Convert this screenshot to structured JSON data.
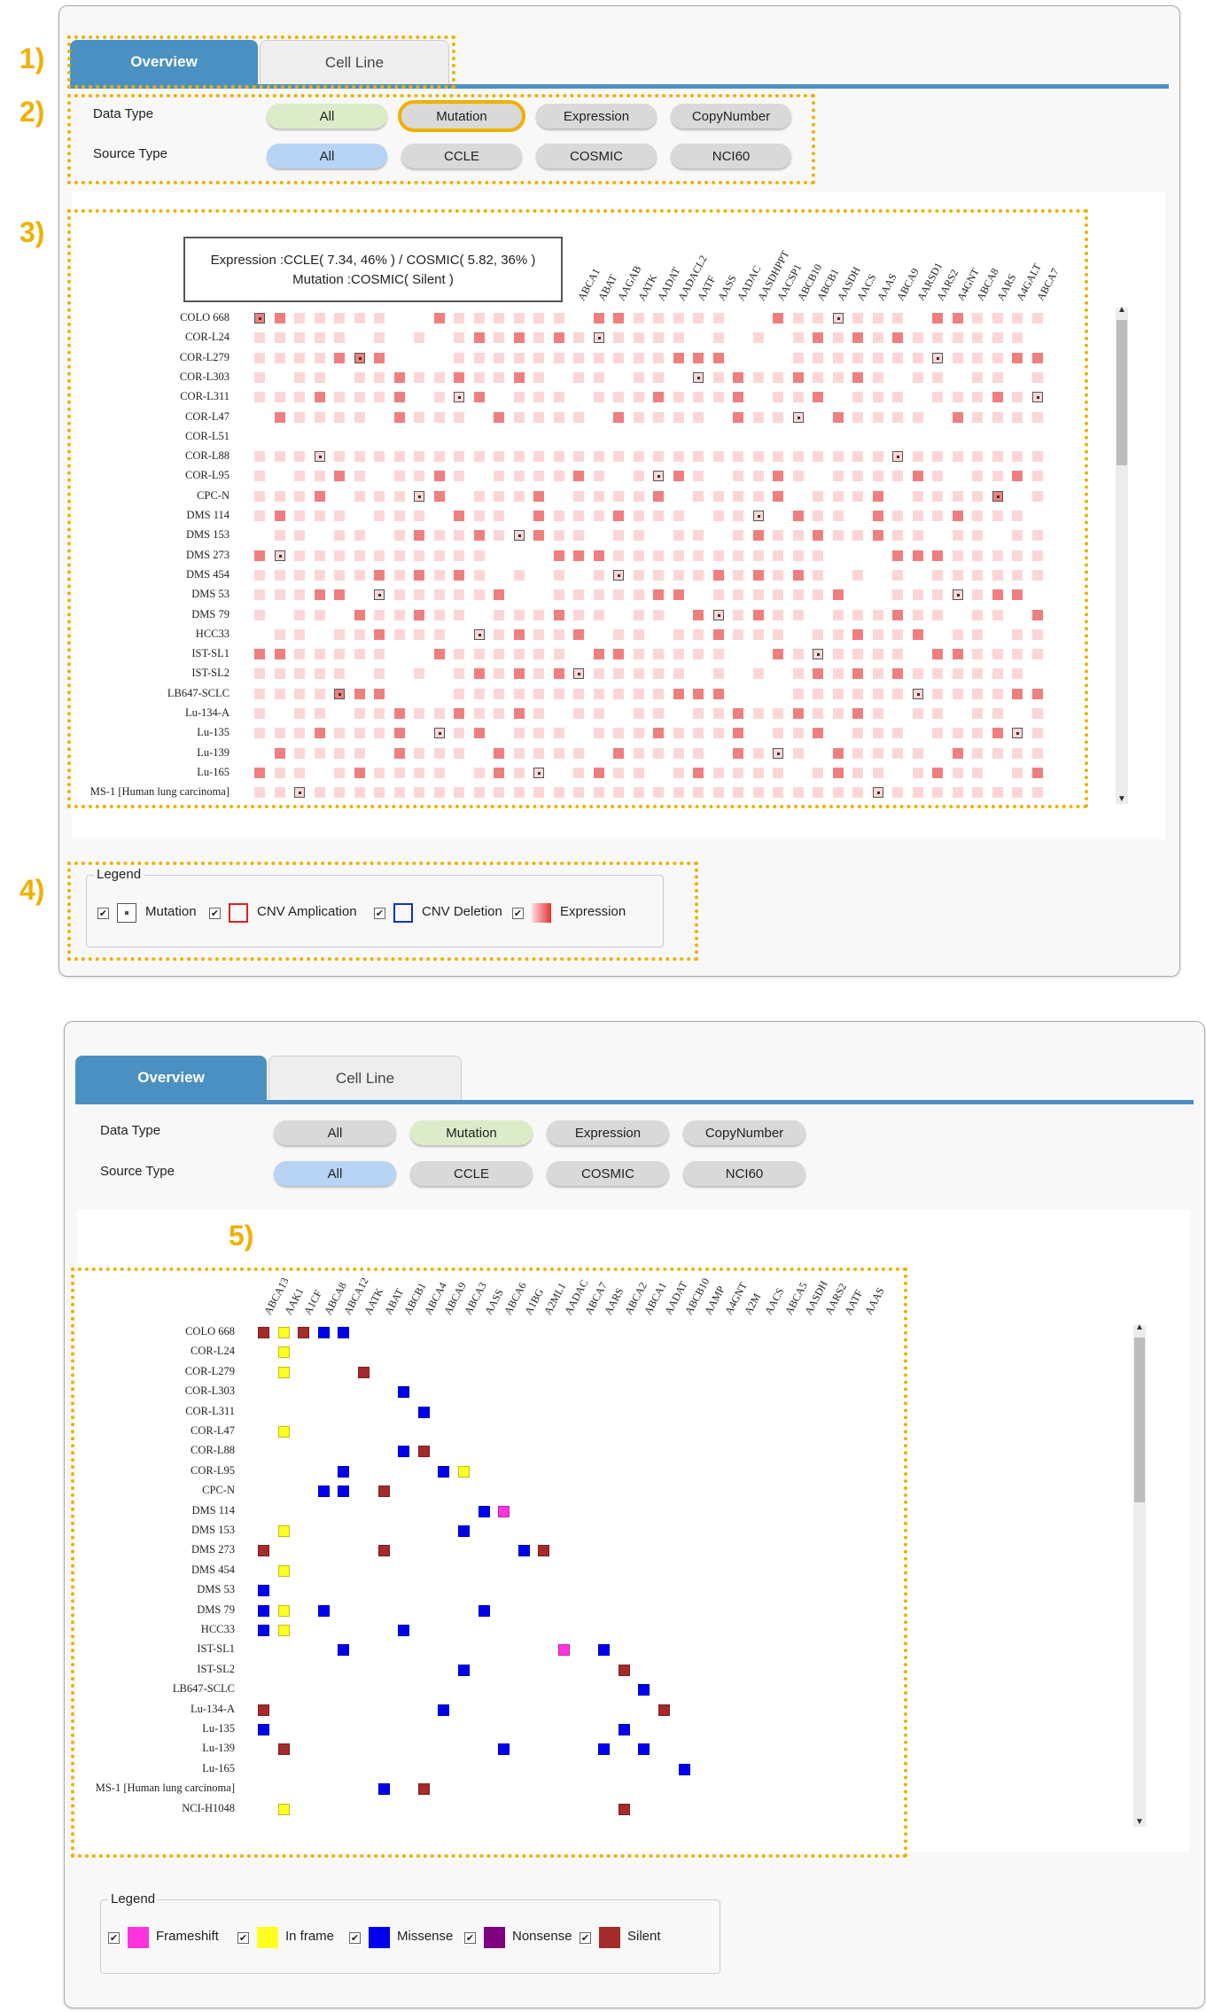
{
  "annotations": {
    "a1": "1)",
    "a2": "2)",
    "a3": "3)",
    "a4": "4)",
    "a5": "5)"
  },
  "tabs": {
    "overview": "Overview",
    "cellline": "Cell Line"
  },
  "filters": {
    "data_type_label": "Data Type",
    "source_type_label": "Source Type",
    "data_types": [
      "All",
      "Mutation",
      "Expression",
      "CopyNumber"
    ],
    "source_types": [
      "All",
      "CCLE",
      "COSMIC",
      "NCI60"
    ]
  },
  "panel1": {
    "selected_data_type": "Mutation (highlighted)",
    "tooltip_line1": "Expression :CCLE( 7.34, 46% ) / COSMIC( 5.82, 36% )",
    "tooltip_line2": "Mutation :COSMIC( Silent )",
    "genes": [
      "ABCA1",
      "ABAT",
      "AAGAB",
      "AATK",
      "AADAT",
      "AADACL2",
      "AATF",
      "AASS",
      "AADAC",
      "AASDHPPT",
      "AACSP1",
      "ABCB10",
      "ABCB1",
      "AASDH",
      "AACS",
      "AAAS",
      "ABCA9",
      "AARSD1",
      "AARS2",
      "A4GNT",
      "ABCA8",
      "AARS",
      "A4GALT",
      "ABCA7"
    ],
    "cell_lines": [
      "COLO 668",
      "COR-L24",
      "COR-L279",
      "COR-L303",
      "COR-L311",
      "COR-L47",
      "COR-L51",
      "COR-L88",
      "COR-L95",
      "CPC-N",
      "DMS 114",
      "DMS 153",
      "DMS 273",
      "DMS 454",
      "DMS 53",
      "DMS 79",
      "HCC33",
      "IST-SL1",
      "IST-SL2",
      "LB647-SCLC",
      "Lu-134-A",
      "Lu-135",
      "Lu-139",
      "Lu-165",
      "MS-1 [Human lung carcinoma]"
    ],
    "legend": {
      "title": "Legend",
      "items": [
        "Mutation",
        "CNV Amplication",
        "CNV Deletion",
        "Expression"
      ]
    }
  },
  "panel2": {
    "genes": [
      "ABCA13",
      "AAK1",
      "A1CF",
      "ABCA8",
      "ABCA12",
      "AATK",
      "ABAT",
      "ABCB1",
      "ABCA4",
      "ABCA9",
      "ABCA3",
      "AASS",
      "ABCA6",
      "A1BG",
      "A2ML1",
      "AADAC",
      "ABCA7",
      "AARS",
      "ABCA2",
      "ABCA1",
      "AADAT",
      "ABCB10",
      "AAMP",
      "A4GNT",
      "A2M",
      "AACS",
      "ABCA5",
      "AASDH",
      "AARS2",
      "AATF",
      "AAAS"
    ],
    "cell_lines": [
      "COLO 668",
      "COR-L24",
      "COR-L279",
      "COR-L303",
      "COR-L311",
      "COR-L47",
      "COR-L88",
      "COR-L95",
      "CPC-N",
      "DMS 114",
      "DMS 153",
      "DMS 273",
      "DMS 454",
      "DMS 53",
      "DMS 79",
      "HCC33",
      "IST-SL1",
      "IST-SL2",
      "LB647-SCLC",
      "Lu-134-A",
      "Lu-135",
      "Lu-139",
      "Lu-165",
      "MS-1 [Human lung carcinoma]",
      "NCI-H1048"
    ],
    "mutations": [
      [
        [
          0,
          "S"
        ],
        [
          1,
          "I"
        ],
        [
          2,
          "S"
        ],
        [
          3,
          "M"
        ],
        [
          4,
          "M"
        ]
      ],
      [
        [
          1,
          "I"
        ]
      ],
      [
        [
          1,
          "I"
        ],
        [
          5,
          "S"
        ]
      ],
      [
        [
          7,
          "M"
        ]
      ],
      [
        [
          8,
          "M"
        ]
      ],
      [
        [
          1,
          "I"
        ]
      ],
      [
        [
          7,
          "M"
        ],
        [
          8,
          "S"
        ]
      ],
      [
        [
          4,
          "M"
        ],
        [
          9,
          "M"
        ],
        [
          10,
          "I"
        ]
      ],
      [
        [
          3,
          "M"
        ],
        [
          4,
          "M"
        ],
        [
          6,
          "S"
        ]
      ],
      [
        [
          11,
          "M"
        ],
        [
          12,
          "F"
        ]
      ],
      [
        [
          1,
          "I"
        ],
        [
          10,
          "M"
        ]
      ],
      [
        [
          0,
          "S"
        ],
        [
          6,
          "S"
        ],
        [
          13,
          "M"
        ],
        [
          14,
          "S"
        ]
      ],
      [
        [
          1,
          "I"
        ]
      ],
      [
        [
          0,
          "M"
        ]
      ],
      [
        [
          0,
          "M"
        ],
        [
          1,
          "I"
        ],
        [
          3,
          "M"
        ],
        [
          11,
          "M"
        ]
      ],
      [
        [
          0,
          "M"
        ],
        [
          1,
          "I"
        ],
        [
          7,
          "M"
        ]
      ],
      [
        [
          4,
          "M"
        ],
        [
          15,
          "F"
        ],
        [
          17,
          "M"
        ]
      ],
      [
        [
          10,
          "M"
        ],
        [
          18,
          "S"
        ]
      ],
      [
        [
          19,
          "M"
        ]
      ],
      [
        [
          0,
          "S"
        ],
        [
          9,
          "M"
        ],
        [
          20,
          "S"
        ]
      ],
      [
        [
          0,
          "M"
        ],
        [
          18,
          "M"
        ]
      ],
      [
        [
          1,
          "S"
        ],
        [
          12,
          "M"
        ],
        [
          17,
          "M"
        ],
        [
          19,
          "M"
        ]
      ],
      [
        [
          21,
          "M"
        ]
      ],
      [
        [
          6,
          "M"
        ],
        [
          8,
          "S"
        ]
      ],
      [
        [
          1,
          "I"
        ],
        [
          18,
          "S"
        ]
      ]
    ],
    "legend": {
      "title": "Legend",
      "items": [
        "Frameshift",
        "In frame",
        "Missense",
        "Nonsense",
        "Silent"
      ]
    }
  },
  "colors": {
    "frameshift": "#ff33dd",
    "inframe": "#ffff22",
    "missense": "#0000ee",
    "nonsense": "#800080",
    "silent": "#a52a2a",
    "expr_light": "#fcd6d6",
    "expr_dark": "#ef7f7f",
    "tab_blue": "#4b90c2",
    "annotation": "#f0b000"
  }
}
